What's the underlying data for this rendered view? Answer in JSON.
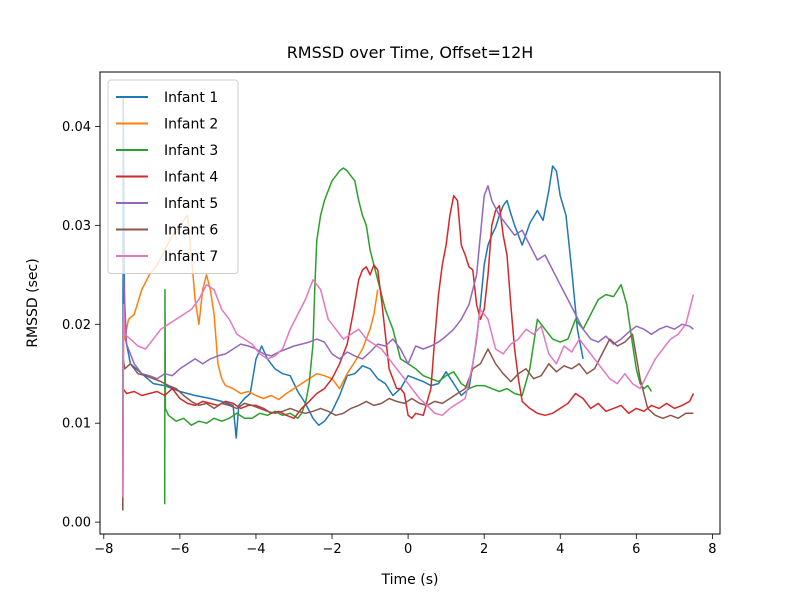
{
  "chart_data": {
    "type": "line",
    "title": "RMSSD over Time, Offset=12H",
    "xlabel": "Time (s)",
    "ylabel": "RMSSD (sec)",
    "xlim": [
      -8.1,
      8.2
    ],
    "ylim": [
      -0.0012,
      0.0455
    ],
    "xticks": [
      -8,
      -6,
      -4,
      -2,
      0,
      2,
      4,
      6,
      8
    ],
    "xtick_labels": [
      "−8",
      "−6",
      "−4",
      "−2",
      "0",
      "2",
      "4",
      "6",
      "8"
    ],
    "yticks": [
      0.0,
      0.01,
      0.02,
      0.03,
      0.04
    ],
    "ytick_labels": [
      "0.00",
      "0.01",
      "0.02",
      "0.03",
      "0.04"
    ],
    "grid": false,
    "legend_position": "top-left",
    "series": [
      {
        "name": "Infant 1",
        "color": "#1f77b4",
        "x": [
          -7.5,
          -7.49,
          -7.45,
          -7.3,
          -7.0,
          -6.7,
          -6.4,
          -6.0,
          -5.6,
          -5.2,
          -4.9,
          -4.6,
          -4.52,
          -4.45,
          -4.3,
          -4.15,
          -4.0,
          -3.85,
          -3.7,
          -3.5,
          -3.3,
          -3.1,
          -2.9,
          -2.7,
          -2.5,
          -2.35,
          -2.2,
          -2.0,
          -1.8,
          -1.6,
          -1.4,
          -1.2,
          -1.0,
          -0.8,
          -0.6,
          -0.4,
          -0.2,
          0.0,
          0.2,
          0.4,
          0.6,
          0.8,
          1.0,
          1.2,
          1.4,
          1.6,
          1.8,
          1.9,
          2.0,
          2.1,
          2.2,
          2.3,
          2.4,
          2.5,
          2.6,
          2.7,
          2.8,
          3.0,
          3.2,
          3.4,
          3.55,
          3.7,
          3.8,
          3.9,
          4.0,
          4.15,
          4.3,
          4.45,
          4.6
        ],
        "y": [
          0.0012,
          0.043,
          0.019,
          0.016,
          0.015,
          0.014,
          0.0138,
          0.0132,
          0.0128,
          0.0125,
          0.0122,
          0.0118,
          0.0085,
          0.0118,
          0.0125,
          0.013,
          0.0165,
          0.0178,
          0.0165,
          0.0155,
          0.015,
          0.0148,
          0.0132,
          0.012,
          0.0105,
          0.0098,
          0.0102,
          0.0112,
          0.0128,
          0.0148,
          0.015,
          0.0158,
          0.0155,
          0.0145,
          0.014,
          0.0128,
          0.0135,
          0.0148,
          0.0145,
          0.0142,
          0.0138,
          0.014,
          0.0152,
          0.014,
          0.0128,
          0.0135,
          0.0185,
          0.022,
          0.026,
          0.028,
          0.029,
          0.0298,
          0.031,
          0.032,
          0.0325,
          0.0312,
          0.03,
          0.028,
          0.0302,
          0.0315,
          0.0305,
          0.0335,
          0.036,
          0.0355,
          0.033,
          0.031,
          0.0255,
          0.0195,
          0.0165
        ]
      },
      {
        "name": "Infant 2",
        "color": "#ff7f0e",
        "x": [
          -7.5,
          -7.48,
          -7.45,
          -7.35,
          -7.2,
          -7.0,
          -6.8,
          -6.6,
          -6.4,
          -6.2,
          -6.0,
          -5.8,
          -5.7,
          -5.6,
          -5.5,
          -5.4,
          -5.3,
          -5.2,
          -5.1,
          -5.0,
          -4.9,
          -4.8,
          -4.6,
          -4.4,
          -4.2,
          -4.0,
          -3.8,
          -3.6,
          -3.4,
          -3.2,
          -3.0,
          -2.8,
          -2.6,
          -2.4,
          -2.2,
          -2.0,
          -1.8,
          -1.6,
          -1.4,
          -1.2,
          -1.0,
          -0.9,
          -0.8
        ],
        "y": [
          0.003,
          0.021,
          0.0185,
          0.0205,
          0.021,
          0.0235,
          0.025,
          0.026,
          0.0275,
          0.029,
          0.03,
          0.031,
          0.027,
          0.0225,
          0.02,
          0.0235,
          0.025,
          0.0235,
          0.021,
          0.016,
          0.0145,
          0.0138,
          0.0135,
          0.013,
          0.0132,
          0.0128,
          0.0125,
          0.0128,
          0.0124,
          0.013,
          0.0135,
          0.014,
          0.0145,
          0.015,
          0.0148,
          0.0145,
          0.0135,
          0.015,
          0.0162,
          0.0175,
          0.0195,
          0.021,
          0.0235
        ]
      },
      {
        "name": "Infant 3",
        "color": "#2ca02c",
        "x": [
          -6.4,
          -6.39,
          -6.38,
          -6.3,
          -6.1,
          -5.9,
          -5.7,
          -5.5,
          -5.3,
          -5.1,
          -4.9,
          -4.7,
          -4.5,
          -4.3,
          -4.1,
          -3.9,
          -3.7,
          -3.5,
          -3.3,
          -3.1,
          -2.9,
          -2.8,
          -2.7,
          -2.6,
          -2.5,
          -2.45,
          -2.4,
          -2.3,
          -2.2,
          -2.1,
          -2.0,
          -1.9,
          -1.8,
          -1.7,
          -1.6,
          -1.5,
          -1.4,
          -1.3,
          -1.2,
          -1.1,
          -1.0,
          -0.9,
          -0.8,
          -0.6,
          -0.4,
          -0.2,
          0.0,
          0.2,
          0.4,
          0.6,
          0.8,
          1.0,
          1.2,
          1.4,
          1.6,
          1.8,
          2.0,
          2.2,
          2.4,
          2.6,
          2.8,
          3.0,
          3.2,
          3.4,
          3.6,
          3.8,
          4.0,
          4.2,
          4.4,
          4.6,
          4.8,
          5.0,
          5.2,
          5.4,
          5.6,
          5.75,
          5.9,
          6.0,
          6.1,
          6.2,
          6.3,
          6.4
        ],
        "y": [
          0.0018,
          0.0235,
          0.0115,
          0.0108,
          0.0102,
          0.0105,
          0.0098,
          0.0102,
          0.01,
          0.0105,
          0.0102,
          0.0105,
          0.011,
          0.0105,
          0.0105,
          0.011,
          0.0108,
          0.0112,
          0.0108,
          0.011,
          0.0105,
          0.011,
          0.012,
          0.014,
          0.018,
          0.024,
          0.0285,
          0.031,
          0.0325,
          0.0335,
          0.0345,
          0.035,
          0.0355,
          0.0358,
          0.0355,
          0.035,
          0.0345,
          0.0325,
          0.031,
          0.03,
          0.0275,
          0.026,
          0.0245,
          0.0215,
          0.0195,
          0.0165,
          0.016,
          0.0155,
          0.0148,
          0.0145,
          0.0142,
          0.0148,
          0.0152,
          0.014,
          0.0135,
          0.0138,
          0.0138,
          0.0135,
          0.0132,
          0.0135,
          0.013,
          0.0128,
          0.0155,
          0.0205,
          0.0195,
          0.0185,
          0.0182,
          0.0185,
          0.0205,
          0.0195,
          0.021,
          0.0225,
          0.023,
          0.0228,
          0.024,
          0.022,
          0.018,
          0.0155,
          0.014,
          0.0135,
          0.0138,
          0.0132
        ]
      },
      {
        "name": "Infant 4",
        "color": "#d62728",
        "x": [
          -7.5,
          -7.4,
          -7.2,
          -7.0,
          -6.8,
          -6.6,
          -6.4,
          -6.2,
          -6.0,
          -5.8,
          -5.6,
          -5.4,
          -5.2,
          -5.0,
          -4.8,
          -4.6,
          -4.4,
          -4.2,
          -4.0,
          -3.8,
          -3.6,
          -3.4,
          -3.2,
          -3.0,
          -2.8,
          -2.6,
          -2.4,
          -2.2,
          -2.0,
          -1.8,
          -1.6,
          -1.45,
          -1.3,
          -1.2,
          -1.1,
          -1.0,
          -0.9,
          -0.8,
          -0.7,
          -0.6,
          -0.5,
          -0.4,
          -0.3,
          -0.2,
          -0.1,
          0.0,
          0.1,
          0.2,
          0.4,
          0.6,
          0.7,
          0.8,
          0.9,
          1.0,
          1.1,
          1.2,
          1.3,
          1.4,
          1.5,
          1.6,
          1.7,
          1.8,
          1.9,
          2.0,
          2.1,
          2.2,
          2.3,
          2.4,
          2.5,
          2.6,
          2.7,
          2.8,
          2.9,
          3.0,
          3.2,
          3.4,
          3.6,
          3.8,
          4.0,
          4.2,
          4.4,
          4.6,
          4.8,
          5.0,
          5.2,
          5.4,
          5.6,
          5.8,
          6.0,
          6.2,
          6.4,
          6.6,
          6.8,
          7.0,
          7.2,
          7.4,
          7.5
        ],
        "y": [
          0.0135,
          0.013,
          0.0132,
          0.0128,
          0.013,
          0.0132,
          0.0128,
          0.0135,
          0.0125,
          0.012,
          0.0118,
          0.0122,
          0.012,
          0.0118,
          0.0122,
          0.012,
          0.0115,
          0.0118,
          0.0118,
          0.0115,
          0.011,
          0.0112,
          0.0108,
          0.0105,
          0.0115,
          0.0122,
          0.013,
          0.0135,
          0.0145,
          0.016,
          0.018,
          0.021,
          0.0245,
          0.0255,
          0.0258,
          0.025,
          0.026,
          0.0255,
          0.0225,
          0.019,
          0.0155,
          0.0145,
          0.0135,
          0.0135,
          0.013,
          0.0108,
          0.0105,
          0.011,
          0.0108,
          0.0135,
          0.0185,
          0.023,
          0.026,
          0.028,
          0.031,
          0.033,
          0.0325,
          0.028,
          0.027,
          0.0258,
          0.0255,
          0.022,
          0.0205,
          0.0215,
          0.025,
          0.03,
          0.0315,
          0.032,
          0.029,
          0.027,
          0.022,
          0.0175,
          0.0145,
          0.0122,
          0.0115,
          0.011,
          0.0108,
          0.011,
          0.0115,
          0.012,
          0.013,
          0.0125,
          0.0115,
          0.012,
          0.0112,
          0.0115,
          0.0118,
          0.011,
          0.0115,
          0.0112,
          0.0118,
          0.0115,
          0.012,
          0.0115,
          0.0118,
          0.0122,
          0.013
        ]
      },
      {
        "name": "Infant 5",
        "color": "#9467bd",
        "x": [
          -7.5,
          -7.4,
          -7.2,
          -7.0,
          -6.8,
          -6.6,
          -6.4,
          -6.2,
          -6.0,
          -5.8,
          -5.6,
          -5.4,
          -5.2,
          -5.0,
          -4.8,
          -4.6,
          -4.4,
          -4.2,
          -4.0,
          -3.8,
          -3.6,
          -3.4,
          -3.2,
          -3.0,
          -2.8,
          -2.6,
          -2.4,
          -2.2,
          -2.0,
          -1.8,
          -1.6,
          -1.4,
          -1.2,
          -1.0,
          -0.8,
          -0.6,
          -0.4,
          -0.2,
          0.0,
          0.2,
          0.4,
          0.6,
          0.8,
          1.0,
          1.2,
          1.4,
          1.6,
          1.8,
          2.0,
          2.1,
          2.2,
          2.4,
          2.6,
          2.8,
          3.0,
          3.2,
          3.4,
          3.6,
          3.8,
          4.0,
          4.2,
          4.4,
          4.6,
          4.8,
          5.0,
          5.2,
          5.4,
          5.6,
          5.8,
          6.0,
          6.2,
          6.4,
          6.6,
          6.8,
          7.0,
          7.2,
          7.4,
          7.5
        ],
        "y": [
          0.0265,
          0.018,
          0.016,
          0.015,
          0.0148,
          0.0145,
          0.015,
          0.0148,
          0.0155,
          0.016,
          0.0165,
          0.016,
          0.0165,
          0.0168,
          0.017,
          0.0175,
          0.018,
          0.0178,
          0.0175,
          0.017,
          0.0168,
          0.0172,
          0.0175,
          0.0178,
          0.018,
          0.0182,
          0.0185,
          0.0182,
          0.017,
          0.0165,
          0.0172,
          0.0168,
          0.0165,
          0.0172,
          0.018,
          0.0178,
          0.0185,
          0.0175,
          0.016,
          0.0178,
          0.0175,
          0.0178,
          0.0182,
          0.0188,
          0.0195,
          0.0205,
          0.022,
          0.025,
          0.033,
          0.034,
          0.0325,
          0.031,
          0.03,
          0.029,
          0.0295,
          0.028,
          0.0265,
          0.027,
          0.0255,
          0.024,
          0.0225,
          0.021,
          0.0195,
          0.0185,
          0.0182,
          0.0188,
          0.018,
          0.0185,
          0.0192,
          0.0198,
          0.0195,
          0.019,
          0.0195,
          0.0198,
          0.0195,
          0.02,
          0.0198,
          0.0195
        ]
      },
      {
        "name": "Infant 6",
        "color": "#8c564b",
        "x": [
          -7.5,
          -7.49,
          -7.45,
          -7.3,
          -7.1,
          -6.9,
          -6.7,
          -6.5,
          -6.3,
          -6.1,
          -5.9,
          -5.7,
          -5.5,
          -5.3,
          -5.1,
          -4.9,
          -4.7,
          -4.5,
          -4.3,
          -4.1,
          -3.9,
          -3.7,
          -3.5,
          -3.3,
          -3.1,
          -2.9,
          -2.7,
          -2.5,
          -2.3,
          -2.1,
          -1.9,
          -1.7,
          -1.5,
          -1.3,
          -1.1,
          -0.9,
          -0.7,
          -0.5,
          -0.3,
          -0.1,
          0.1,
          0.3,
          0.5,
          0.7,
          0.9,
          1.1,
          1.3,
          1.5,
          1.7,
          1.9,
          2.1,
          2.3,
          2.5,
          2.7,
          2.9,
          3.1,
          3.3,
          3.5,
          3.7,
          3.9,
          4.1,
          4.3,
          4.5,
          4.7,
          4.9,
          5.1,
          5.3,
          5.5,
          5.7,
          5.9,
          6.1,
          6.3,
          6.5,
          6.7,
          6.9,
          7.1,
          7.3,
          7.5
        ],
        "y": [
          0.0012,
          0.0165,
          0.0155,
          0.016,
          0.015,
          0.0148,
          0.0145,
          0.0142,
          0.0138,
          0.0135,
          0.0128,
          0.0122,
          0.0118,
          0.012,
          0.0115,
          0.012,
          0.0118,
          0.0115,
          0.012,
          0.0118,
          0.0115,
          0.0112,
          0.011,
          0.0112,
          0.0115,
          0.0112,
          0.011,
          0.0112,
          0.0115,
          0.0112,
          0.0108,
          0.011,
          0.0115,
          0.0118,
          0.0122,
          0.0118,
          0.012,
          0.0125,
          0.0122,
          0.012,
          0.0125,
          0.012,
          0.0118,
          0.0122,
          0.012,
          0.0125,
          0.013,
          0.0135,
          0.0155,
          0.016,
          0.0175,
          0.016,
          0.015,
          0.0142,
          0.015,
          0.0155,
          0.0145,
          0.0148,
          0.016,
          0.0152,
          0.0158,
          0.0155,
          0.016,
          0.015,
          0.0155,
          0.017,
          0.0185,
          0.0178,
          0.0182,
          0.019,
          0.0145,
          0.0115,
          0.0108,
          0.0105,
          0.0108,
          0.0105,
          0.011,
          0.011
        ]
      },
      {
        "name": "Infant 7",
        "color": "#e377c2",
        "x": [
          -7.5,
          -7.48,
          -7.45,
          -7.3,
          -7.1,
          -6.9,
          -6.7,
          -6.5,
          -6.3,
          -6.1,
          -5.9,
          -5.7,
          -5.5,
          -5.3,
          -5.1,
          -4.9,
          -4.7,
          -4.5,
          -4.3,
          -4.1,
          -3.9,
          -3.7,
          -3.5,
          -3.3,
          -3.1,
          -2.9,
          -2.7,
          -2.5,
          -2.3,
          -2.1,
          -1.9,
          -1.7,
          -1.5,
          -1.3,
          -1.1,
          -0.9,
          -0.7,
          -0.5,
          -0.3,
          -0.1,
          0.1,
          0.3,
          0.5,
          0.7,
          0.9,
          1.1,
          1.3,
          1.5,
          1.7,
          1.9,
          2.1,
          2.3,
          2.5,
          2.7,
          2.9,
          3.1,
          3.3,
          3.5,
          3.7,
          3.9,
          4.1,
          4.3,
          4.5,
          4.7,
          4.9,
          5.1,
          5.3,
          5.5,
          5.7,
          5.9,
          6.1,
          6.3,
          6.5,
          6.7,
          6.9,
          7.1,
          7.3,
          7.5
        ],
        "y": [
          0.0025,
          0.022,
          0.019,
          0.0185,
          0.0178,
          0.0175,
          0.0185,
          0.0195,
          0.02,
          0.0205,
          0.021,
          0.0215,
          0.0225,
          0.024,
          0.0235,
          0.0215,
          0.0205,
          0.019,
          0.0185,
          0.018,
          0.017,
          0.0165,
          0.0168,
          0.0175,
          0.0195,
          0.021,
          0.0225,
          0.0245,
          0.0235,
          0.0205,
          0.0195,
          0.0185,
          0.019,
          0.0195,
          0.0185,
          0.018,
          0.0175,
          0.0165,
          0.0155,
          0.0145,
          0.0135,
          0.0125,
          0.0118,
          0.011,
          0.0108,
          0.0115,
          0.012,
          0.0125,
          0.016,
          0.0215,
          0.0205,
          0.0175,
          0.017,
          0.018,
          0.0185,
          0.0195,
          0.019,
          0.0198,
          0.017,
          0.016,
          0.0178,
          0.0172,
          0.0185,
          0.0175,
          0.0165,
          0.0155,
          0.0145,
          0.014,
          0.015,
          0.014,
          0.0135,
          0.015,
          0.0165,
          0.0175,
          0.0185,
          0.019,
          0.02,
          0.023
        ]
      }
    ]
  }
}
